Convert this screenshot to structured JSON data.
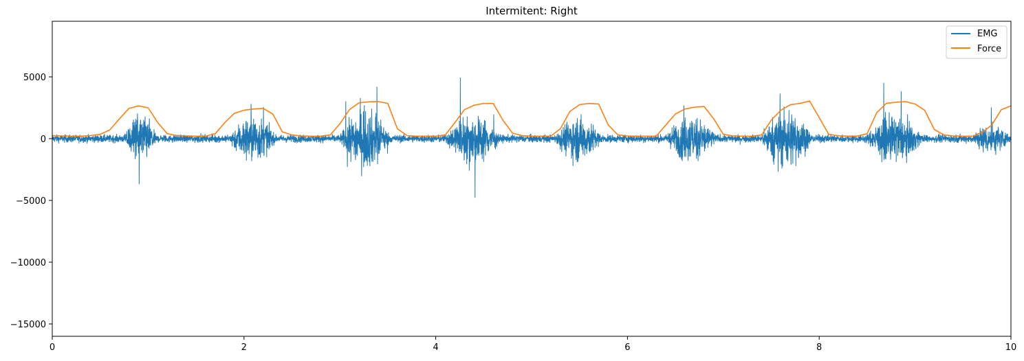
{
  "chart_data": {
    "type": "line",
    "title": "Intermitent: Right",
    "xlabel": "",
    "ylabel": "",
    "xlim": [
      0,
      10
    ],
    "ylim": [
      -16000,
      9500
    ],
    "x_ticks": [
      0,
      2,
      4,
      6,
      8,
      10
    ],
    "x_tick_labels": [
      "0",
      "2",
      "4",
      "6",
      "8",
      "10"
    ],
    "y_ticks": [
      5000,
      0,
      -5000,
      -10000,
      -15000
    ],
    "y_tick_labels": [
      "5000",
      "0",
      "−5000",
      "−10000",
      "−15000"
    ],
    "grid": false,
    "legend_position": "top-right",
    "series": [
      {
        "name": "EMG",
        "color": "#1f77b4",
        "noise_baseline": 150,
        "bursts": [
          {
            "start": 0.75,
            "end": 1.1,
            "amplitude": 2400
          },
          {
            "start": 1.85,
            "end": 2.35,
            "amplitude": 2300
          },
          {
            "start": 3.0,
            "end": 3.55,
            "amplitude": 3000
          },
          {
            "start": 4.1,
            "end": 4.7,
            "amplitude": 2400
          },
          {
            "start": 5.25,
            "end": 5.75,
            "amplitude": 2200
          },
          {
            "start": 6.4,
            "end": 6.95,
            "amplitude": 2300
          },
          {
            "start": 7.4,
            "end": 7.95,
            "amplitude": 3000
          },
          {
            "start": 8.5,
            "end": 9.1,
            "amplitude": 2200
          },
          {
            "start": 9.6,
            "end": 10.0,
            "amplitude": 1400
          }
        ]
      },
      {
        "name": "Force",
        "color": "#ff7f0e",
        "x": [
          0,
          0.1,
          0.2,
          0.3,
          0.4,
          0.5,
          0.6,
          0.7,
          0.8,
          0.9,
          1.0,
          1.1,
          1.2,
          1.3,
          1.4,
          1.5,
          1.6,
          1.7,
          1.8,
          1.9,
          2.0,
          2.1,
          2.2,
          2.3,
          2.4,
          2.5,
          2.6,
          2.7,
          2.8,
          2.9,
          3.0,
          3.1,
          3.2,
          3.3,
          3.4,
          3.5,
          3.6,
          3.7,
          3.8,
          3.9,
          4.0,
          4.1,
          4.2,
          4.3,
          4.4,
          4.5,
          4.6,
          4.7,
          4.8,
          4.9,
          5.0,
          5.1,
          5.2,
          5.3,
          5.4,
          5.5,
          5.6,
          5.7,
          5.8,
          5.9,
          6.0,
          6.1,
          6.2,
          6.3,
          6.4,
          6.5,
          6.6,
          6.7,
          6.8,
          6.9,
          7.0,
          7.1,
          7.2,
          7.3,
          7.4,
          7.5,
          7.6,
          7.7,
          7.8,
          7.9,
          8.0,
          8.1,
          8.2,
          8.3,
          8.4,
          8.5,
          8.6,
          8.7,
          8.8,
          8.9,
          9.0,
          9.1,
          9.2,
          9.3,
          9.4,
          9.5,
          9.6,
          9.7,
          9.8,
          9.9,
          10.0
        ],
        "values": [
          250,
          220,
          200,
          200,
          250,
          350,
          700,
          1600,
          2450,
          2650,
          2500,
          1300,
          400,
          250,
          220,
          200,
          200,
          400,
          1300,
          2050,
          2300,
          2400,
          2450,
          2000,
          550,
          300,
          220,
          200,
          200,
          300,
          1200,
          2350,
          2900,
          2980,
          3000,
          2850,
          800,
          250,
          200,
          200,
          200,
          300,
          1300,
          2350,
          2700,
          2850,
          2850,
          1500,
          450,
          250,
          200,
          200,
          200,
          800,
          2200,
          2750,
          2850,
          2800,
          1100,
          300,
          220,
          200,
          200,
          200,
          1100,
          2000,
          2400,
          2550,
          2600,
          1600,
          350,
          220,
          200,
          200,
          300,
          1500,
          2300,
          2750,
          2850,
          3050,
          1700,
          350,
          230,
          200,
          220,
          400,
          2100,
          2850,
          2950,
          3000,
          2800,
          2300,
          750,
          300,
          220,
          200,
          200,
          500,
          1100,
          2350,
          2650
        ]
      }
    ]
  }
}
